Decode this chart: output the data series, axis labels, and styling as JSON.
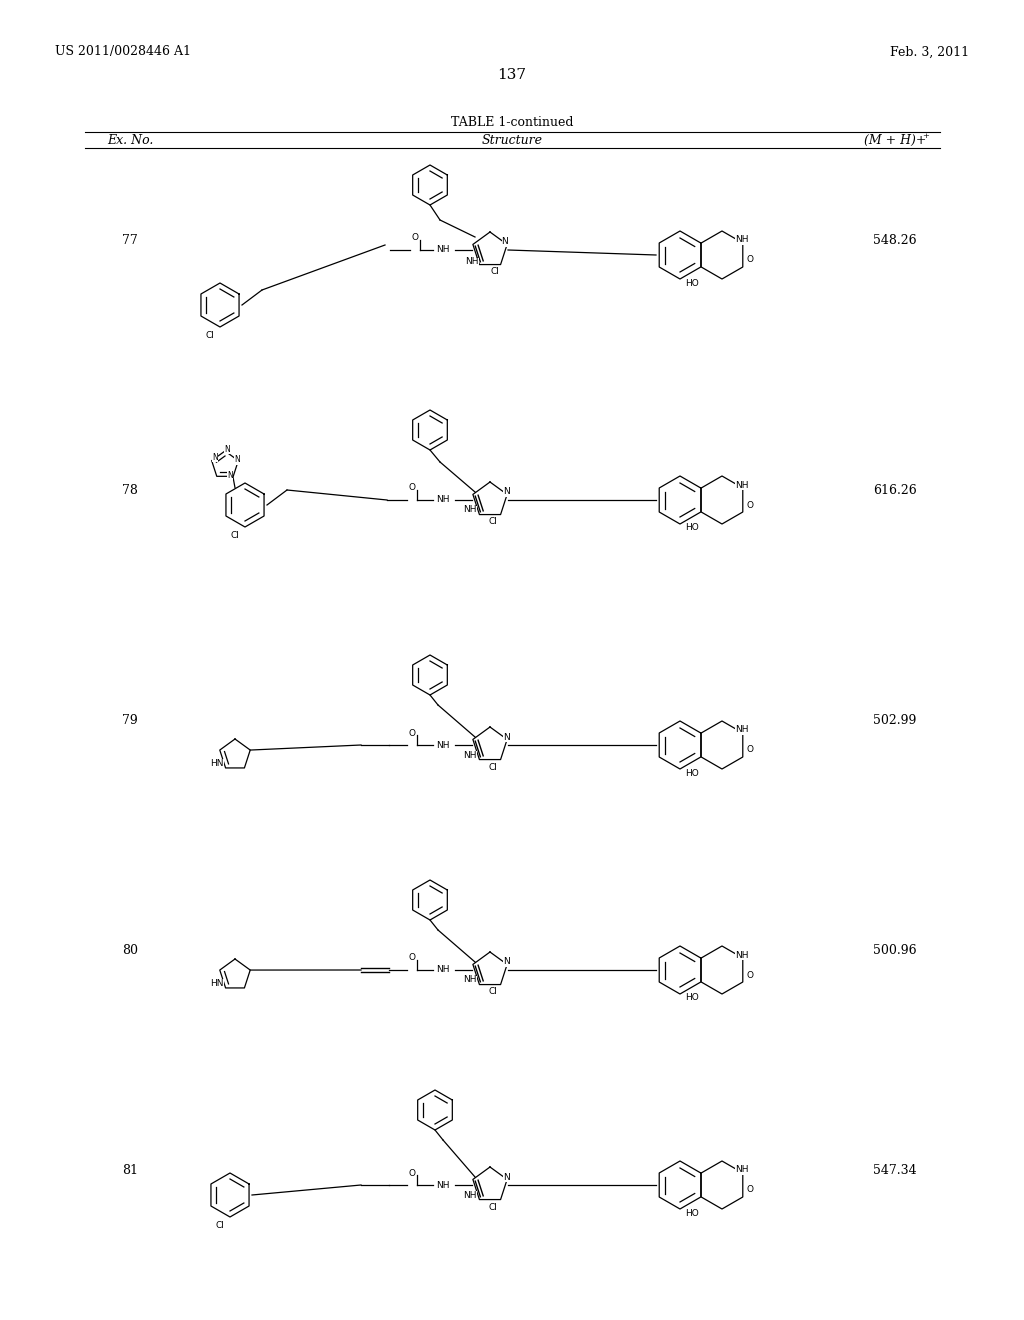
{
  "page_left": "US 2011/0028446 A1",
  "page_right": "Feb. 3, 2011",
  "page_number": "137",
  "table_title": "TABLE 1-continued",
  "col_headers": [
    "Ex. No.",
    "Structure",
    "(M + H)+"
  ],
  "rows": [
    {
      "ex_no": "77",
      "mh": "548.26"
    },
    {
      "ex_no": "78",
      "mh": "616.26"
    },
    {
      "ex_no": "79",
      "mh": "502.99"
    },
    {
      "ex_no": "80",
      "mh": "500.96"
    },
    {
      "ex_no": "81",
      "mh": "547.34"
    }
  ],
  "background_color": "#ffffff",
  "text_color": "#000000",
  "font_size_header": 9,
  "font_size_body": 9,
  "font_size_page": 9,
  "font_size_page_number": 11,
  "font_size_table_title": 9,
  "line_color": "#000000"
}
